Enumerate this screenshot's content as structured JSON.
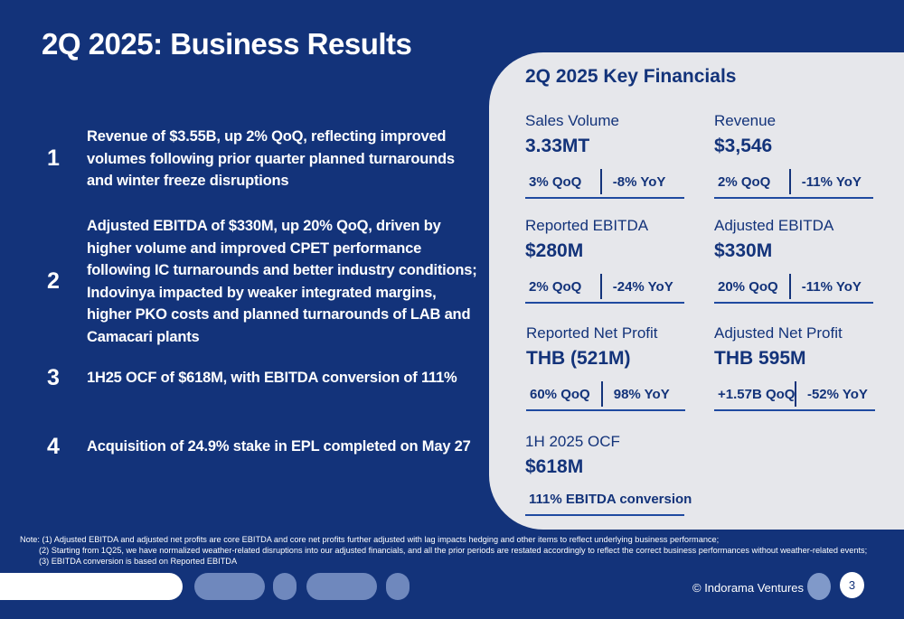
{
  "slide": {
    "title": "2Q 2025: Business Results",
    "page_number": "3",
    "copyright": "© Indorama Ventures"
  },
  "points": [
    {
      "num": "1",
      "text": "Revenue of $3.55B, up 2% QoQ, reflecting improved volumes following prior quarter planned turnarounds and winter freeze disruptions"
    },
    {
      "num": "2",
      "text": "Adjusted EBITDA of $330M, up 20% QoQ, driven by higher volume and improved CPET performance following IC turnarounds and better industry conditions; Indovinya impacted by weaker integrated margins, higher PKO costs and planned turnarounds of LAB and Camacari plants"
    },
    {
      "num": "3",
      "text": "1H25 OCF of $618M, with EBITDA conversion of 111%"
    },
    {
      "num": "4",
      "text": "Acquisition of 24.9% stake in EPL completed on May 27"
    }
  ],
  "panel": {
    "title": "2Q 2025 Key Financials",
    "metrics": [
      {
        "label": "Sales Volume",
        "value": "3.33MT",
        "qoq": "3%  QoQ",
        "yoy": "-8%  YoY"
      },
      {
        "label": "Revenue",
        "value": "$3,546",
        "qoq": "2%  QoQ",
        "yoy": "-11%  YoY"
      },
      {
        "label": "Reported EBITDA",
        "value": "$280M",
        "qoq": "2%  QoQ",
        "yoy": "-24%  YoY"
      },
      {
        "label": "Adjusted EBITDA",
        "value": "$330M",
        "qoq": "20%  QoQ",
        "yoy": "-11%  YoY"
      },
      {
        "label": "Reported Net Profit",
        "value": "THB (521M)",
        "qoq": "60%  QoQ",
        "yoy": "98%  YoY"
      },
      {
        "label": "Adjusted Net Profit",
        "value": "THB 595M",
        "qoq": "+1.57B QoQ",
        "yoy": "-52%  YoY"
      },
      {
        "label": "1H 2025 OCF",
        "value": "$618M",
        "single": "111% EBITDA conversion"
      }
    ]
  },
  "notes": [
    "Note: (1) Adjusted EBITDA and adjusted net profits are core EBITDA and core net profits further adjusted with lag impacts hedging and other items to reflect underlying business performance;",
    "(2) Starting from 1Q25, we have normalized weather-related disruptions into our adjusted financials, and all the prior periods are restated accordingly to reflect the correct business performances without weather-related events;",
    "(3) EBITDA conversion is based on Reported EBITDA"
  ],
  "colors": {
    "background": "#13337a",
    "panel": "#e6e7eb",
    "accent": "#1f4aa0"
  }
}
